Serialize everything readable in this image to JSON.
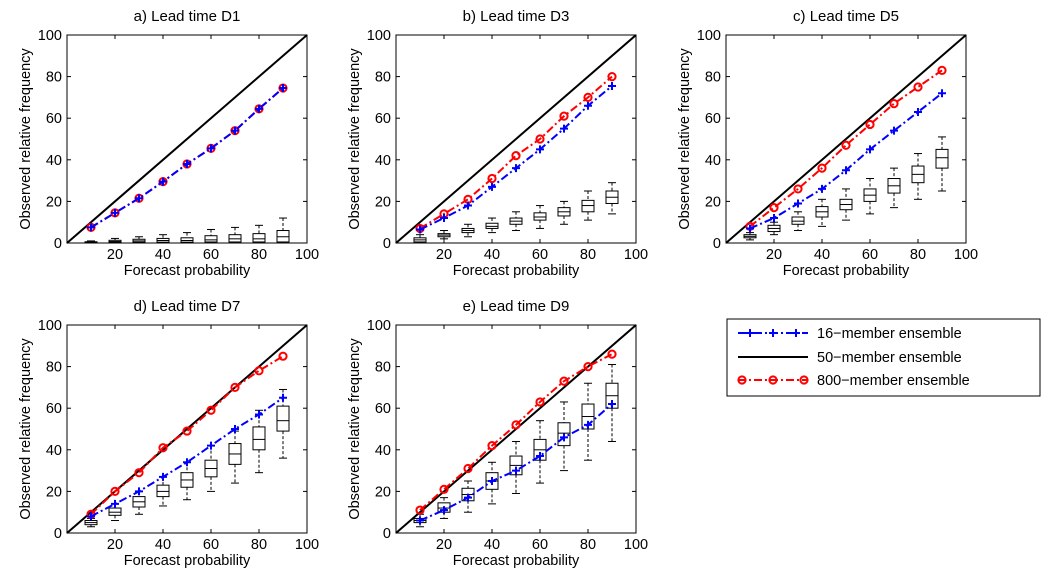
{
  "colors": {
    "series16": "#0000ff",
    "series50": "#000000",
    "series800": "#ff0000",
    "boxplot": "#000000",
    "background": "#ffffff"
  },
  "legend": {
    "entries": [
      {
        "label": "16−member ensemble",
        "style": "blue-dashdot-plus"
      },
      {
        "label": "50−member ensemble",
        "style": "black-solid"
      },
      {
        "label": "800−member ensemble",
        "style": "red-dashdot-circle"
      }
    ],
    "placement": "right of bottom row"
  },
  "chart_data": [
    {
      "type": "line",
      "title": "a) Lead time D1",
      "xlabel": "Forecast probability",
      "ylabel": "Observed relative frequency",
      "xlim": [
        0,
        100
      ],
      "ylim": [
        0,
        100
      ],
      "xticks": [
        "20",
        "40",
        "60",
        "80",
        "100"
      ],
      "yticks": [
        "0",
        "20",
        "40",
        "60",
        "80",
        "100"
      ],
      "x": [
        10,
        20,
        30,
        40,
        50,
        60,
        70,
        80,
        90
      ],
      "series": [
        {
          "name": "16−member ensemble",
          "values": [
            7.5,
            14.5,
            21.5,
            29.5,
            38,
            45.5,
            54,
            64.5,
            74.5
          ]
        },
        {
          "name": "50−member ensemble",
          "values": [
            10,
            20,
            30,
            40,
            50,
            60,
            70,
            80,
            90
          ]
        },
        {
          "name": "800−member ensemble",
          "values": [
            7.5,
            14.5,
            21.5,
            29.5,
            38,
            45.5,
            54,
            64.5,
            74.5
          ]
        }
      ],
      "boxplots": [
        {
          "x": 10,
          "min": 0,
          "q1": 0,
          "median": 0.3,
          "q3": 0.6,
          "max": 1
        },
        {
          "x": 20,
          "min": 0,
          "q1": 0.3,
          "median": 0.7,
          "q3": 1.3,
          "max": 2.2
        },
        {
          "x": 30,
          "min": 0,
          "q1": 0.4,
          "median": 1,
          "q3": 1.8,
          "max": 3
        },
        {
          "x": 40,
          "min": 0,
          "q1": 0.4,
          "median": 1.2,
          "q3": 2.2,
          "max": 4
        },
        {
          "x": 50,
          "min": 0,
          "q1": 0.4,
          "median": 1.2,
          "q3": 2.5,
          "max": 5
        },
        {
          "x": 60,
          "min": 0,
          "q1": 0.5,
          "median": 1.5,
          "q3": 3.5,
          "max": 6.5
        },
        {
          "x": 70,
          "min": 0,
          "q1": 0.5,
          "median": 2,
          "q3": 4,
          "max": 7.5
        },
        {
          "x": 80,
          "min": 0,
          "q1": 0.5,
          "median": 2,
          "q3": 4.5,
          "max": 8.5
        },
        {
          "x": 90,
          "min": 0,
          "q1": 0.5,
          "median": 3,
          "q3": 6,
          "max": 12
        }
      ]
    },
    {
      "type": "line",
      "title": "b) Lead time D3",
      "xlabel": "Forecast probability",
      "ylabel": "Observed relative frequency",
      "xlim": [
        0,
        100
      ],
      "ylim": [
        0,
        100
      ],
      "xticks": [
        "20",
        "40",
        "60",
        "80",
        "100"
      ],
      "yticks": [
        "0",
        "20",
        "40",
        "60",
        "80",
        "100"
      ],
      "x": [
        10,
        20,
        30,
        40,
        50,
        60,
        70,
        80,
        90
      ],
      "series": [
        {
          "name": "16−member ensemble",
          "values": [
            6.5,
            12,
            18,
            27,
            36,
            45,
            55,
            66,
            75.5
          ]
        },
        {
          "name": "50−member ensemble",
          "values": [
            10,
            20,
            30,
            40,
            50,
            60,
            70,
            80,
            90
          ]
        },
        {
          "name": "800−member ensemble",
          "values": [
            7,
            14,
            21,
            31,
            42,
            50,
            61,
            70,
            80
          ]
        }
      ],
      "boxplots": [
        {
          "x": 10,
          "min": 0,
          "q1": 0.5,
          "median": 1.5,
          "q3": 2.5,
          "max": 4
        },
        {
          "x": 20,
          "min": 2,
          "q1": 3,
          "median": 3.8,
          "q3": 4.5,
          "max": 6
        },
        {
          "x": 30,
          "min": 3,
          "q1": 5,
          "median": 6,
          "q3": 7,
          "max": 9
        },
        {
          "x": 40,
          "min": 5,
          "q1": 7,
          "median": 8,
          "q3": 9.5,
          "max": 12
        },
        {
          "x": 50,
          "min": 6,
          "q1": 9,
          "median": 10.5,
          "q3": 12,
          "max": 15
        },
        {
          "x": 60,
          "min": 7,
          "q1": 11,
          "median": 12.5,
          "q3": 14.5,
          "max": 18
        },
        {
          "x": 70,
          "min": 9,
          "q1": 13,
          "median": 15,
          "q3": 17,
          "max": 20
        },
        {
          "x": 80,
          "min": 11,
          "q1": 15,
          "median": 18,
          "q3": 20.5,
          "max": 25
        },
        {
          "x": 90,
          "min": 14,
          "q1": 19,
          "median": 22,
          "q3": 25,
          "max": 29
        }
      ]
    },
    {
      "type": "line",
      "title": "c) Lead time D5",
      "xlabel": "Forecast probability",
      "ylabel": "Observed relative frequency",
      "xlim": [
        0,
        100
      ],
      "ylim": [
        0,
        100
      ],
      "xticks": [
        "20",
        "40",
        "60",
        "80",
        "100"
      ],
      "yticks": [
        "0",
        "20",
        "40",
        "60",
        "80",
        "100"
      ],
      "x": [
        10,
        20,
        30,
        40,
        50,
        60,
        70,
        80,
        90
      ],
      "series": [
        {
          "name": "16−member ensemble",
          "values": [
            7,
            12,
            19,
            26,
            35,
            45,
            54,
            63,
            72
          ]
        },
        {
          "name": "50−member ensemble",
          "values": [
            10,
            20,
            30,
            40,
            50,
            60,
            70,
            80,
            90
          ]
        },
        {
          "name": "800−member ensemble",
          "values": [
            8,
            17,
            26,
            36,
            47,
            57,
            67,
            75,
            83
          ]
        }
      ],
      "boxplots": [
        {
          "x": 10,
          "min": 1.5,
          "q1": 2.5,
          "median": 3.2,
          "q3": 4,
          "max": 5
        },
        {
          "x": 20,
          "min": 4,
          "q1": 5.5,
          "median": 7,
          "q3": 8.5,
          "max": 10
        },
        {
          "x": 30,
          "min": 6,
          "q1": 9,
          "median": 10.5,
          "q3": 12.5,
          "max": 15
        },
        {
          "x": 40,
          "min": 8,
          "q1": 12.5,
          "median": 15,
          "q3": 17.5,
          "max": 21
        },
        {
          "x": 50,
          "min": 11,
          "q1": 16,
          "median": 18.5,
          "q3": 21,
          "max": 26
        },
        {
          "x": 60,
          "min": 14,
          "q1": 20,
          "median": 23,
          "q3": 26,
          "max": 31
        },
        {
          "x": 70,
          "min": 17,
          "q1": 24,
          "median": 27.5,
          "q3": 31,
          "max": 36
        },
        {
          "x": 80,
          "min": 21,
          "q1": 29,
          "median": 33,
          "q3": 37,
          "max": 43
        },
        {
          "x": 90,
          "min": 25,
          "q1": 36,
          "median": 41,
          "q3": 45,
          "max": 51
        }
      ]
    },
    {
      "type": "line",
      "title": "d) Lead time D7",
      "xlabel": "Forecast probability",
      "ylabel": "Observed relative frequency",
      "xlim": [
        0,
        100
      ],
      "ylim": [
        0,
        100
      ],
      "xticks": [
        "20",
        "40",
        "60",
        "80",
        "100"
      ],
      "yticks": [
        "0",
        "20",
        "40",
        "60",
        "80",
        "100"
      ],
      "x": [
        10,
        20,
        30,
        40,
        50,
        60,
        70,
        80,
        90
      ],
      "series": [
        {
          "name": "16−member ensemble",
          "values": [
            8,
            14,
            20,
            27,
            34,
            42,
            50,
            57,
            65
          ]
        },
        {
          "name": "50−member ensemble",
          "values": [
            10,
            20,
            30,
            40,
            50,
            60,
            70,
            80,
            90
          ]
        },
        {
          "name": "800−member ensemble",
          "values": [
            9,
            20,
            29,
            41,
            49,
            59,
            70,
            78,
            85
          ]
        }
      ],
      "boxplots": [
        {
          "x": 10,
          "min": 3,
          "q1": 4,
          "median": 5,
          "q3": 6,
          "max": 7
        },
        {
          "x": 20,
          "min": 6,
          "q1": 8.5,
          "median": 10,
          "q3": 12,
          "max": 14
        },
        {
          "x": 30,
          "min": 9,
          "q1": 12.5,
          "median": 15,
          "q3": 17.5,
          "max": 20
        },
        {
          "x": 40,
          "min": 13,
          "q1": 17.5,
          "median": 20,
          "q3": 23,
          "max": 27
        },
        {
          "x": 50,
          "min": 16,
          "q1": 22,
          "median": 25.5,
          "q3": 29,
          "max": 34
        },
        {
          "x": 60,
          "min": 20,
          "q1": 27,
          "median": 31,
          "q3": 35,
          "max": 42
        },
        {
          "x": 70,
          "min": 24,
          "q1": 33,
          "median": 38,
          "q3": 43,
          "max": 49
        },
        {
          "x": 80,
          "min": 29,
          "q1": 40,
          "median": 45,
          "q3": 51,
          "max": 59
        },
        {
          "x": 90,
          "min": 36,
          "q1": 49,
          "median": 54,
          "q3": 61,
          "max": 69
        }
      ]
    },
    {
      "type": "line",
      "title": "e) Lead time D9",
      "xlabel": "Forecast probability",
      "ylabel": "Observed relative frequency",
      "xlim": [
        0,
        100
      ],
      "ylim": [
        0,
        100
      ],
      "xticks": [
        "20",
        "40",
        "60",
        "80",
        "100"
      ],
      "yticks": [
        "0",
        "20",
        "40",
        "60",
        "80",
        "100"
      ],
      "x": [
        10,
        20,
        30,
        40,
        50,
        60,
        70,
        80,
        90
      ],
      "series": [
        {
          "name": "16−member ensemble",
          "values": [
            6,
            11,
            17,
            25,
            30,
            37,
            46,
            52,
            62
          ]
        },
        {
          "name": "50−member ensemble",
          "values": [
            10,
            20,
            30,
            40,
            50,
            60,
            70,
            80,
            90
          ]
        },
        {
          "name": "800−member ensemble",
          "values": [
            11,
            21,
            31,
            42,
            52,
            63,
            73,
            80,
            86
          ]
        }
      ],
      "boxplots": [
        {
          "x": 10,
          "min": 3,
          "q1": 5,
          "median": 6,
          "q3": 7,
          "max": 9
        },
        {
          "x": 20,
          "min": 7,
          "q1": 10,
          "median": 12,
          "q3": 14.5,
          "max": 17
        },
        {
          "x": 30,
          "min": 10,
          "q1": 15.5,
          "median": 18.5,
          "q3": 21.5,
          "max": 25
        },
        {
          "x": 40,
          "min": 14,
          "q1": 21,
          "median": 25,
          "q3": 29,
          "max": 34
        },
        {
          "x": 50,
          "min": 19,
          "q1": 28,
          "median": 32.5,
          "q3": 37,
          "max": 44
        },
        {
          "x": 60,
          "min": 24,
          "q1": 35,
          "median": 40,
          "q3": 45,
          "max": 54
        },
        {
          "x": 70,
          "min": 30,
          "q1": 42,
          "median": 48,
          "q3": 53,
          "max": 63
        },
        {
          "x": 80,
          "min": 35,
          "q1": 50,
          "median": 56,
          "q3": 62,
          "max": 72
        },
        {
          "x": 90,
          "min": 44,
          "q1": 60,
          "median": 66,
          "q3": 72,
          "max": 81
        }
      ]
    }
  ]
}
